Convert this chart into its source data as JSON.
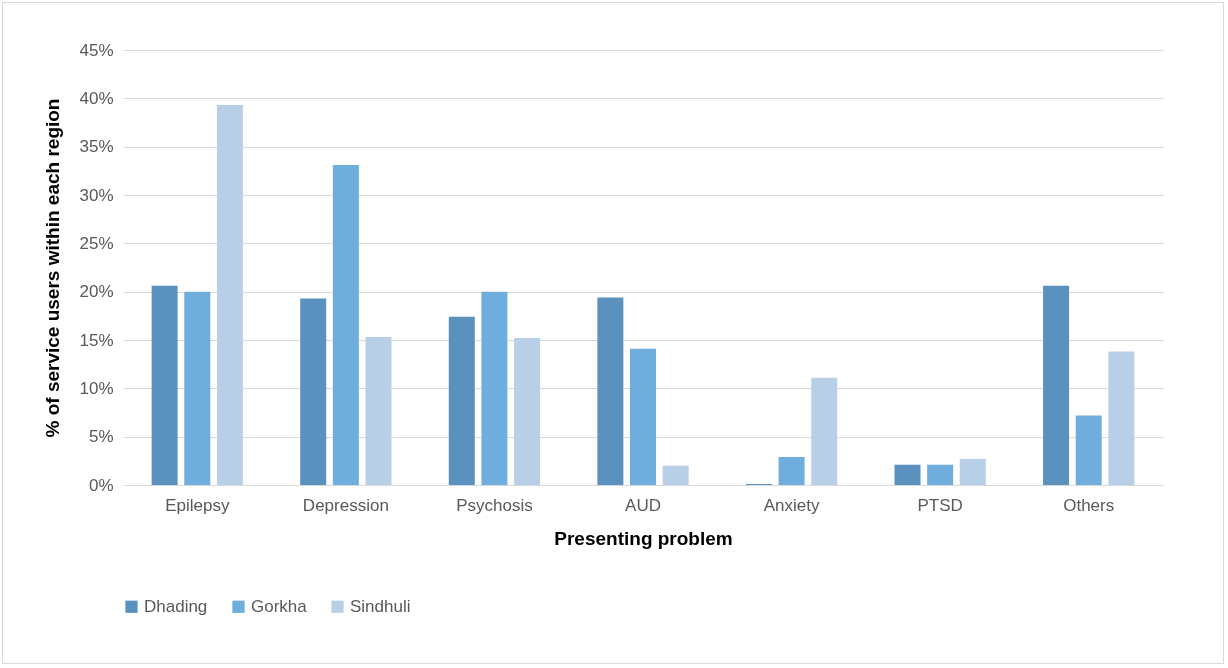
{
  "chart_data": {
    "type": "bar",
    "xlabel": "Presenting problem",
    "ylabel": "% of service users within each region",
    "categories": [
      "Epilepsy",
      "Depression",
      "Psychosis",
      "AUD",
      "Anxiety",
      "PTSD",
      "Others"
    ],
    "series": [
      {
        "name": "Dhading",
        "color": "#5b91bf",
        "values": [
          20.6,
          19.3,
          17.4,
          19.4,
          0.1,
          2.1,
          20.6
        ]
      },
      {
        "name": "Gorkha",
        "color": "#6eaddc",
        "values": [
          20.0,
          33.1,
          20.0,
          14.1,
          2.9,
          2.1,
          7.2
        ]
      },
      {
        "name": "Sindhuli",
        "color": "#b9cfe7",
        "values": [
          39.3,
          15.3,
          15.2,
          2.0,
          11.1,
          2.7,
          13.8
        ]
      }
    ],
    "ylim": [
      0,
      45
    ],
    "yticks": [
      {
        "value": 0,
        "label": "0%"
      },
      {
        "value": 5,
        "label": "5%"
      },
      {
        "value": 10,
        "label": "10%"
      },
      {
        "value": 15,
        "label": "15%"
      },
      {
        "value": 20,
        "label": "20%"
      },
      {
        "value": 25,
        "label": "25%"
      },
      {
        "value": 30,
        "label": "30%"
      },
      {
        "value": 35,
        "label": "35%"
      },
      {
        "value": 40,
        "label": "40%"
      },
      {
        "value": 45,
        "label": "45%"
      }
    ],
    "grid": "y",
    "legend": "bottom"
  }
}
